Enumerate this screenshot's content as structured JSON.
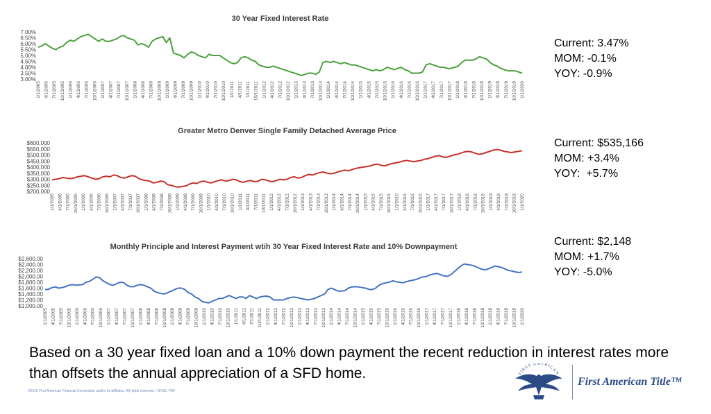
{
  "chart_data": [
    {
      "type": "line",
      "title": "30 Year Fixed Interest Rate",
      "color": "#4aa03c",
      "ylim": [
        3.0,
        7.0
      ],
      "y_ticks": [
        "3.00%",
        "3.50%",
        "4.00%",
        "4.50%",
        "5.00%",
        "5.50%",
        "6.00%",
        "6.50%",
        "7.00%"
      ],
      "x_labels": [
        "1/1/2005",
        "4/1/2005",
        "7/1/2005",
        "10/1/2005",
        "1/1/2006",
        "4/1/2006",
        "7/1/2006",
        "10/1/2006",
        "1/1/2007",
        "4/1/2007",
        "7/1/2007",
        "10/1/2007",
        "1/1/2008",
        "4/1/2008",
        "7/1/2008",
        "10/1/2008",
        "1/1/2009",
        "4/1/2009",
        "7/1/2009",
        "10/1/2009",
        "1/1/2010",
        "4/1/2010",
        "7/1/2010",
        "10/1/2010",
        "1/1/2011",
        "4/1/2011",
        "7/1/2011",
        "10/1/2011",
        "1/1/2012",
        "4/1/2012",
        "7/1/2012",
        "10/1/2012",
        "1/1/2013",
        "4/1/2013",
        "7/1/2013",
        "10/1/2013",
        "1/1/2014",
        "4/1/2014",
        "7/1/2014",
        "10/1/2014",
        "1/1/2015",
        "4/1/2015",
        "7/1/2015",
        "10/1/2015",
        "1/1/2016",
        "4/1/2016",
        "7/1/2016",
        "10/1/2016",
        "1/1/2017",
        "4/1/2017",
        "7/1/2017",
        "10/1/2017",
        "1/1/2018",
        "4/1/2018",
        "7/1/2018",
        "10/1/2018",
        "1/1/2019",
        "4/1/2019",
        "7/1/2019",
        "10/1/2019",
        "1/1/2020"
      ],
      "values": [
        5.7,
        5.8,
        6.0,
        5.8,
        5.6,
        5.5,
        5.7,
        5.8,
        6.1,
        6.3,
        6.2,
        6.4,
        6.6,
        6.7,
        6.8,
        6.6,
        6.4,
        6.2,
        6.4,
        6.2,
        6.2,
        6.3,
        6.4,
        6.6,
        6.7,
        6.5,
        6.4,
        6.3,
        5.9,
        6.0,
        5.9,
        5.7,
        6.2,
        6.4,
        6.5,
        6.6,
        6.1,
        6.5,
        5.2,
        5.1,
        5.0,
        4.8,
        5.1,
        5.3,
        5.2,
        5.0,
        4.9,
        4.8,
        5.1,
        5.0,
        5.0,
        5.0,
        4.8,
        4.6,
        4.4,
        4.3,
        4.4,
        4.8,
        4.9,
        4.8,
        4.6,
        4.5,
        4.2,
        4.1,
        4.0,
        4.0,
        4.1,
        4.0,
        3.9,
        3.8,
        3.7,
        3.6,
        3.5,
        3.4,
        3.3,
        3.4,
        3.5,
        3.5,
        3.4,
        3.6,
        4.4,
        4.5,
        4.4,
        4.5,
        4.4,
        4.3,
        4.4,
        4.3,
        4.2,
        4.2,
        4.1,
        4.0,
        3.9,
        3.8,
        3.7,
        3.8,
        3.7,
        3.8,
        4.0,
        3.9,
        3.8,
        3.9,
        4.0,
        3.8,
        3.7,
        3.5,
        3.5,
        3.5,
        3.6,
        4.2,
        4.3,
        4.2,
        4.1,
        4.0,
        4.0,
        3.9,
        3.9,
        4.0,
        4.1,
        4.4,
        4.6,
        4.6,
        4.6,
        4.7,
        4.9,
        4.8,
        4.7,
        4.4,
        4.2,
        4.1,
        3.9,
        3.8,
        3.7,
        3.7,
        3.7,
        3.6,
        3.5
      ]
    },
    {
      "type": "line",
      "title": "Greater Metro Denver Single Family Detached Average Price",
      "color": "#c8302c",
      "ylim": [
        200000,
        600000
      ],
      "y_ticks": [
        "$200,000",
        "$250,000",
        "$300,000",
        "$350,000",
        "$400,000",
        "$450,000",
        "$500,000",
        "$550,000",
        "$600,000"
      ],
      "x_labels": [
        "1/1/2005",
        "4/1/2005",
        "7/1/2005",
        "10/1/2005",
        "1/1/2006",
        "4/1/2006",
        "7/1/2006",
        "10/1/2006",
        "1/1/2007",
        "4/1/2007",
        "7/1/2007",
        "10/1/2007",
        "1/1/2008",
        "4/1/2008",
        "7/1/2008",
        "10/1/2008",
        "1/1/2009",
        "4/1/2009",
        "7/1/2009",
        "10/1/2009",
        "1/1/2010",
        "4/1/2010",
        "7/1/2010",
        "10/1/2010",
        "1/1/2011",
        "4/1/2011",
        "7/1/2011",
        "10/1/2011",
        "1/1/2012",
        "4/1/2012",
        "7/1/2012",
        "10/1/2012",
        "1/1/2013",
        "4/1/2013",
        "7/1/2013",
        "10/1/2013",
        "1/1/2014",
        "4/1/2014",
        "7/1/2014",
        "10/1/2014",
        "1/1/2015",
        "4/1/2015",
        "7/1/2015",
        "10/1/2015",
        "1/1/2016",
        "4/1/2016",
        "7/1/2016",
        "10/1/2016",
        "1/1/2017",
        "4/1/2017",
        "7/1/2017",
        "10/1/2017",
        "1/1/2018",
        "4/1/2018",
        "7/1/2018",
        "10/1/2018",
        "1/1/2019",
        "4/1/2019",
        "7/1/2019",
        "10/1/2019",
        "1/1/2020"
      ],
      "values": [
        295000,
        300000,
        305000,
        315000,
        310000,
        305000,
        310000,
        320000,
        325000,
        330000,
        320000,
        310000,
        300000,
        305000,
        320000,
        325000,
        320000,
        335000,
        330000,
        315000,
        310000,
        320000,
        330000,
        325000,
        305000,
        295000,
        290000,
        285000,
        270000,
        275000,
        285000,
        280000,
        255000,
        250000,
        240000,
        235000,
        240000,
        245000,
        260000,
        270000,
        265000,
        280000,
        285000,
        275000,
        270000,
        280000,
        290000,
        295000,
        285000,
        290000,
        300000,
        295000,
        280000,
        275000,
        285000,
        290000,
        280000,
        285000,
        300000,
        295000,
        285000,
        280000,
        290000,
        300000,
        295000,
        300000,
        315000,
        320000,
        310000,
        315000,
        330000,
        340000,
        335000,
        345000,
        355000,
        360000,
        350000,
        345000,
        350000,
        360000,
        370000,
        375000,
        370000,
        380000,
        390000,
        395000,
        400000,
        405000,
        410000,
        420000,
        425000,
        415000,
        410000,
        420000,
        430000,
        435000,
        440000,
        450000,
        455000,
        450000,
        445000,
        450000,
        455000,
        465000,
        470000,
        480000,
        490000,
        495000,
        485000,
        480000,
        490000,
        500000,
        505000,
        515000,
        525000,
        530000,
        525000,
        515000,
        505000,
        510000,
        520000,
        530000,
        540000,
        545000,
        540000,
        530000,
        525000,
        520000,
        525000,
        530000,
        535166
      ]
    },
    {
      "type": "line",
      "title": "Monthly Principle and Interest Payment wtih 30 Year Fixed Interest Rate and 10% Downpayment",
      "color": "#4472c4",
      "ylim": [
        1000,
        2600
      ],
      "y_ticks": [
        "$1,000.00",
        "$1,200.00",
        "$1,400.00",
        "$1,600.00",
        "$1,800.00",
        "$2,000.00",
        "$2,200.00",
        "$2,400.00",
        "$2,600.00"
      ],
      "x_labels": [
        "1/1/2005",
        "4/1/2005",
        "7/1/2005",
        "10/1/2005",
        "1/1/2006",
        "4/1/2006",
        "7/1/2006",
        "10/1/2006",
        "1/1/2007",
        "4/1/2007",
        "7/1/2007",
        "10/1/2007",
        "1/1/2008",
        "4/1/2008",
        "7/1/2008",
        "10/1/2008",
        "1/1/2009",
        "4/1/2009",
        "7/1/2009",
        "10/1/2009",
        "1/1/2010",
        "4/1/2010",
        "7/1/2010",
        "10/1/2010",
        "1/1/2011",
        "4/1/2011",
        "7/1/2011",
        "10/1/2011",
        "1/1/2012",
        "4/1/2012",
        "7/1/2012",
        "10/1/2012",
        "1/1/2013",
        "4/1/2013",
        "7/1/2013",
        "10/1/2013",
        "1/1/2014",
        "4/1/2014",
        "7/1/2014",
        "10/1/2014",
        "1/1/2015",
        "4/1/2015",
        "7/1/2015",
        "10/1/2015",
        "1/1/2016",
        "4/1/2016",
        "7/1/2016",
        "10/1/2016",
        "1/1/2017",
        "4/1/2017",
        "7/1/2017",
        "10/1/2017",
        "1/1/2018",
        "4/1/2018",
        "7/1/2018",
        "10/1/2018",
        "1/1/2019",
        "4/1/2019",
        "7/1/2019",
        "10/1/2019",
        "1/1/2020"
      ],
      "values": [
        1550,
        1560,
        1620,
        1640,
        1600,
        1620,
        1650,
        1700,
        1720,
        1700,
        1710,
        1720,
        1800,
        1830,
        1900,
        1980,
        1950,
        1850,
        1780,
        1720,
        1700,
        1750,
        1800,
        1790,
        1700,
        1650,
        1650,
        1700,
        1720,
        1700,
        1650,
        1600,
        1500,
        1450,
        1420,
        1400,
        1450,
        1500,
        1550,
        1600,
        1600,
        1550,
        1450,
        1400,
        1300,
        1250,
        1150,
        1120,
        1100,
        1150,
        1200,
        1250,
        1250,
        1300,
        1350,
        1300,
        1250,
        1300,
        1300,
        1250,
        1350,
        1300,
        1250,
        1300,
        1320,
        1330,
        1300,
        1200,
        1200,
        1200,
        1200,
        1250,
        1280,
        1300,
        1280,
        1250,
        1230,
        1200,
        1220,
        1250,
        1300,
        1350,
        1400,
        1550,
        1600,
        1550,
        1500,
        1500,
        1520,
        1600,
        1640,
        1650,
        1640,
        1620,
        1600,
        1560,
        1550,
        1600,
        1700,
        1750,
        1780,
        1800,
        1850,
        1820,
        1800,
        1780,
        1820,
        1850,
        1870,
        1900,
        1950,
        1980,
        2000,
        2050,
        2080,
        2100,
        2060,
        2020,
        2000,
        2050,
        2150,
        2250,
        2350,
        2420,
        2400,
        2380,
        2350,
        2300,
        2250,
        2220,
        2250,
        2300,
        2350,
        2330,
        2300,
        2250,
        2200,
        2180,
        2150,
        2130,
        2148
      ]
    }
  ],
  "stats": [
    {
      "current": "Current: 3.47%",
      "mom": "MOM: -0.1%",
      "yoy": "YOY: -0.9%"
    },
    {
      "current": "Current: $535,166",
      "mom": "MOM: +3.4%",
      "yoy": "YOY:  +5.7%"
    },
    {
      "current": "Current: $2,148",
      "mom": "MOM: +1.7%",
      "yoy": "YOY: -5.0%"
    }
  ],
  "summary": "Based on a 30 year fixed loan and a 10% down payment the recent reduction in interest rates more than offsets the annual appreciation of a SFD home.",
  "copyright": "©2019 First American Financial Corporation and/or its affiliates. All rights reserved. | NYSE: FAF",
  "logo": {
    "text": "First American Title™",
    "seal_text": "FIRST AMERICAN"
  }
}
